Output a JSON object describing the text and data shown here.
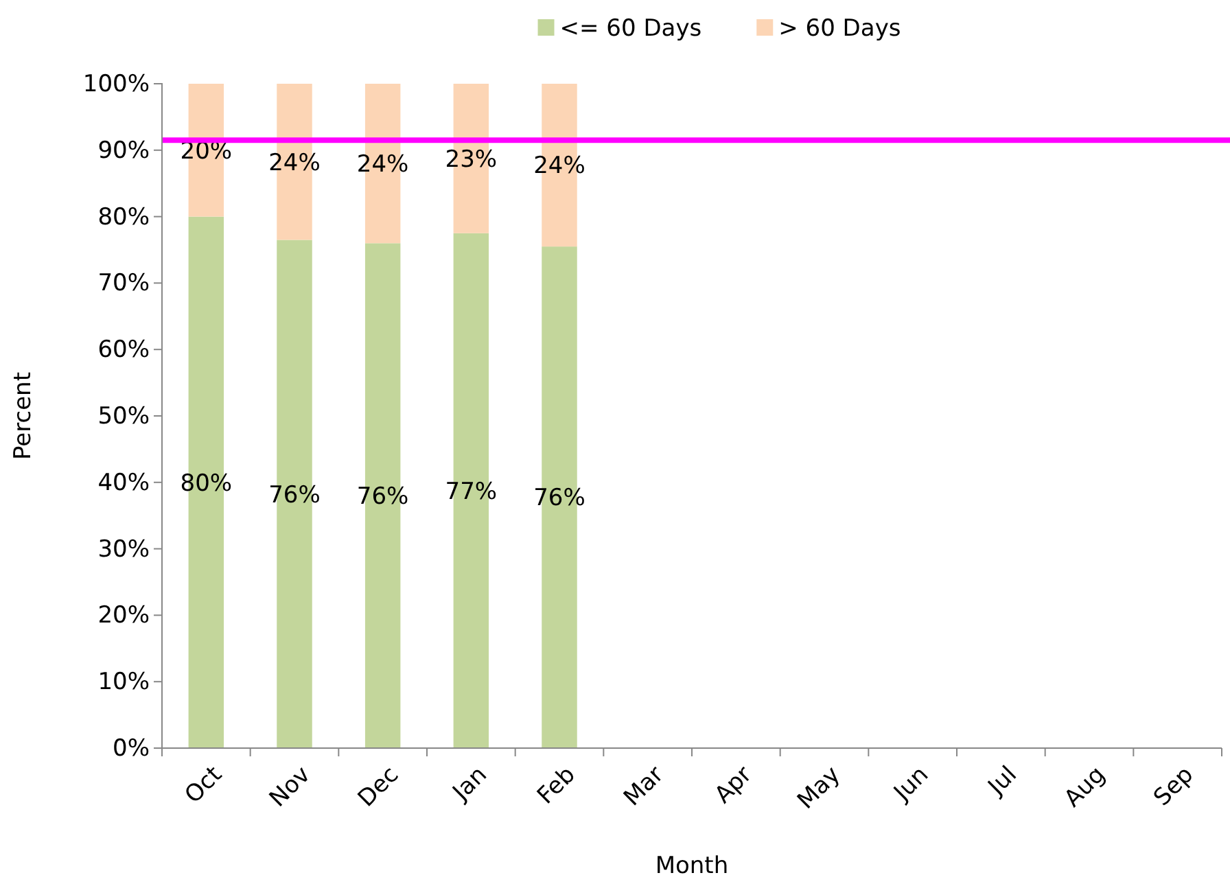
{
  "chart_data": {
    "type": "bar",
    "stacked": true,
    "xlabel": "Month",
    "ylabel": "Percent",
    "categories": [
      "Oct",
      "Nov",
      "Dec",
      "Jan",
      "Feb",
      "Mar",
      "Apr",
      "May",
      "Jun",
      "Jul",
      "Aug",
      "Sep"
    ],
    "series": [
      {
        "name": "<= 60 Days",
        "color": "#c3d69b",
        "values": [
          80,
          76.5,
          76,
          77.5,
          75.5,
          null,
          null,
          null,
          null,
          null,
          null,
          null
        ],
        "value_labels": [
          "80%",
          "76%",
          "76%",
          "77%",
          "76%",
          null,
          null,
          null,
          null,
          null,
          null,
          null
        ]
      },
      {
        "name": "> 60 Days",
        "color": "#fcd5b5",
        "values": [
          20,
          23.5,
          24,
          22.5,
          24.5,
          null,
          null,
          null,
          null,
          null,
          null,
          null
        ],
        "value_labels": [
          "20%",
          "24%",
          "24%",
          "23%",
          "24%",
          null,
          null,
          null,
          null,
          null,
          null,
          null
        ]
      }
    ],
    "ylim": [
      0,
      100
    ],
    "yticks": [
      {
        "value": 0,
        "label": "0%"
      },
      {
        "value": 10,
        "label": "10%"
      },
      {
        "value": 20,
        "label": "20%"
      },
      {
        "value": 30,
        "label": "30%"
      },
      {
        "value": 40,
        "label": "40%"
      },
      {
        "value": 50,
        "label": "50%"
      },
      {
        "value": 60,
        "label": "60%"
      },
      {
        "value": 70,
        "label": "70%"
      },
      {
        "value": 80,
        "label": "80%"
      },
      {
        "value": 90,
        "label": "90%"
      },
      {
        "value": 100,
        "label": "100%"
      }
    ],
    "ref_lines": [
      {
        "axis": "y",
        "value": 91.5,
        "color": "#ff00ff"
      }
    ],
    "legend": "top",
    "grid": false
  }
}
